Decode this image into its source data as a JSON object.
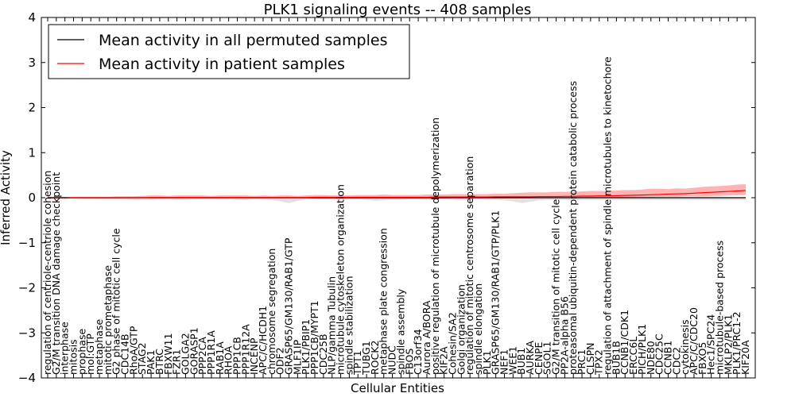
{
  "chart_data": {
    "type": "line",
    "title": "PLK1 signaling events -- 408 samples",
    "xlabel": "Cellular Entities",
    "ylabel": "Inferred Activity",
    "ylim": [
      -4,
      4
    ],
    "yticks": [
      -4,
      -3,
      -2,
      -1,
      0,
      1,
      2,
      3,
      4
    ],
    "legend_position": "top-left",
    "colors": {
      "permuted": "#000000",
      "patient": "#ff0000",
      "band": "#ff8a8a",
      "grey_band": "#c8c8c8"
    },
    "categories": [
      "regulation of centriole-centriole cohesion",
      "G2/M transition DNA damage checkpoint",
      "interphase",
      "mitosis",
      "prophase",
      "mol:GTP",
      "metaphase",
      "mitotic prometaphase",
      "G2 phase of mitotic cell cycle",
      "CDC14B",
      "RhoA/GTP",
      "STAG2",
      "PAK1",
      "BTRC",
      "FBXW11",
      "FZR1",
      "GOLGA2",
      "GORASP1",
      "PPP2CA",
      "PPP1R1A",
      "RAB1A",
      "RHOA",
      "PPP1CB",
      "PPP1R12A",
      "INCENP",
      "APC/C/HCDH1",
      "chromosome segregation",
      "ODF2",
      "GRASP65/GM130/RAB1/GTP",
      "MLF1IP",
      "PLK1/PBIP1",
      "PPP1CB/MYPT1",
      "CDC25B",
      "NLP/gamma Tubulin",
      "microtubule cytoskeleton organization",
      "spindle stabilization",
      "TPT1",
      "TUBG1",
      "ROCK2",
      "metaphase plate congression",
      "NUDC",
      "spindle assembly",
      "FBOS",
      "C13orf34",
      "Aurora A/BORA",
      "positive regulation of microtubule depolymerization",
      "KIF2A",
      "Cohesin/SA2",
      "Golgi organization",
      "regulation of mitotic centrosome separation",
      "spindle elongation",
      "PLK1",
      "GRASP65/GM130/RAB1/GTP/PLK1",
      "NEF1",
      "WEE1",
      "BUB1",
      "AURKA",
      "CENPE",
      "SGOL1",
      "G2/M transition of mitotic cell cycle",
      "PP2A-alpha B56",
      "proteasomal ubiquitin-dependent protein catabolic process",
      "PRC1",
      "CLSPN",
      "TPX2",
      "regulation of attachment of spindle microtubules to kinetochore",
      "BUB1B",
      "CCNB1/CDK1",
      "ERCC6L",
      "PICH/PLK1",
      "NDE80",
      "CDC25C",
      "CCNB1",
      "CDC2",
      "cytokinesis",
      "APC/C/CDC20",
      "FBXO5",
      "Hec1/SPC24",
      "microtubule-based process",
      "MKLP2/PLK1",
      "PLK1/PRC1-2",
      "KIF20A"
    ],
    "series": [
      {
        "name": "Mean activity in all permuted samples",
        "color": "#000000",
        "values": [
          0,
          0,
          0,
          0,
          0,
          0,
          0,
          0,
          0,
          0,
          0,
          0,
          0,
          0,
          0,
          0,
          0,
          0,
          0,
          0,
          0,
          0,
          0,
          0,
          0,
          0,
          0,
          0,
          0,
          0,
          0,
          0,
          0,
          0,
          0,
          0,
          0,
          0,
          0,
          0,
          0,
          0,
          0,
          0,
          0,
          0,
          0,
          0,
          0,
          0,
          0,
          0,
          0,
          0,
          0,
          0,
          0,
          0,
          0,
          0,
          0,
          0,
          0,
          0,
          0,
          0,
          0,
          0,
          0,
          0,
          0,
          0,
          0,
          0,
          0,
          0,
          0,
          0,
          0,
          0,
          0,
          0
        ]
      },
      {
        "name": "Mean activity in patient samples",
        "color": "#ff0000",
        "values": [
          -0.01,
          -0.01,
          -0.01,
          0,
          0,
          0,
          0,
          0,
          0,
          0,
          0,
          0,
          0.005,
          0.005,
          0.005,
          0.005,
          0.005,
          0.005,
          0.005,
          0.005,
          0.005,
          0.005,
          0.005,
          0.005,
          0.005,
          0.005,
          0.005,
          0.005,
          0.005,
          0.005,
          0.005,
          0.01,
          0.01,
          0.01,
          0.01,
          0.01,
          0.01,
          0.01,
          0.01,
          0.01,
          0.01,
          0.01,
          0.01,
          0.01,
          0.01,
          0.015,
          0.015,
          0.015,
          0.015,
          0.015,
          0.015,
          0.015,
          0.02,
          0.02,
          0.02,
          0.02,
          0.02,
          0.025,
          0.025,
          0.025,
          0.03,
          0.03,
          0.035,
          0.035,
          0.04,
          0.04,
          0.045,
          0.05,
          0.055,
          0.06,
          0.065,
          0.07,
          0.08,
          0.085,
          0.09,
          0.1,
          0.11,
          0.12,
          0.13,
          0.14,
          0.15,
          0.16
        ]
      }
    ],
    "band_upper": [
      0.02,
      0.02,
      0.02,
      0.02,
      0.02,
      0.02,
      0.02,
      0.02,
      0.03,
      0.03,
      0.03,
      0.04,
      0.05,
      0.05,
      0.04,
      0.05,
      0.05,
      0.05,
      0.05,
      0.04,
      0.05,
      0.05,
      0.05,
      0.05,
      0.04,
      0.05,
      0.04,
      0.05,
      0.05,
      0.04,
      0.05,
      0.06,
      0.06,
      0.05,
      0.05,
      0.05,
      0.06,
      0.06,
      0.06,
      0.07,
      0.06,
      0.06,
      0.06,
      0.06,
      0.07,
      0.07,
      0.07,
      0.08,
      0.08,
      0.08,
      0.08,
      0.08,
      0.09,
      0.09,
      0.1,
      0.11,
      0.12,
      0.12,
      0.12,
      0.13,
      0.13,
      0.13,
      0.14,
      0.15,
      0.15,
      0.15,
      0.16,
      0.17,
      0.17,
      0.18,
      0.2,
      0.2,
      0.19,
      0.21,
      0.2,
      0.22,
      0.24,
      0.25,
      0.26,
      0.27,
      0.29,
      0.3
    ],
    "band_lower": [
      -0.02,
      -0.02,
      -0.02,
      -0.02,
      -0.02,
      -0.02,
      -0.02,
      -0.02,
      -0.02,
      -0.02,
      -0.02,
      -0.02,
      -0.02,
      -0.02,
      -0.02,
      -0.02,
      -0.02,
      -0.02,
      -0.02,
      -0.02,
      -0.02,
      -0.02,
      -0.02,
      -0.02,
      -0.02,
      -0.02,
      -0.02,
      -0.02,
      -0.02,
      -0.02,
      -0.02,
      -0.02,
      -0.02,
      -0.02,
      -0.02,
      -0.02,
      -0.02,
      -0.02,
      -0.02,
      -0.02,
      -0.02,
      -0.02,
      -0.02,
      -0.02,
      -0.02,
      -0.02,
      -0.02,
      -0.01,
      -0.01,
      -0.01,
      -0.01,
      -0.01,
      -0.01,
      -0.01,
      -0.01,
      -0.01,
      -0.01,
      -0.01,
      -0.01,
      -0.01,
      -0.01,
      -0.01,
      -0.01,
      0,
      0,
      0,
      0,
      0,
      0.01,
      0.01,
      0.01,
      0.02,
      0.02,
      0.02,
      0.03,
      0.03,
      0.03,
      0.04,
      0.04,
      0.05,
      0.05,
      0.06
    ],
    "grey_band_upper": [
      0.01,
      0.01,
      0.01,
      0.01,
      0.01,
      0.01,
      0.01,
      0.01,
      0.01,
      0.01,
      0.01,
      0.01,
      0.01,
      0.01,
      0.01,
      0.01,
      0.01,
      0.01,
      0.01,
      0.01,
      0.01,
      0.01,
      0.01,
      0.01,
      0.01,
      0.01,
      0.01,
      0.01,
      0.01,
      0.01,
      0.01,
      0.01,
      0.01,
      0.01,
      0.01,
      0.01,
      0.01,
      0.01,
      0.01,
      0.01,
      0.01,
      0.01,
      0.01,
      0.01,
      0.01,
      0.01,
      0.01,
      0.01,
      0.01,
      0.01,
      0.01,
      0.01,
      0.01,
      0.01,
      0.01,
      0.01,
      0.01,
      0.01,
      0.01,
      0.01,
      0.01,
      0.01,
      0.01,
      0.01,
      0.01,
      0.01,
      0.01,
      0.01,
      0.01,
      0.01,
      0.01,
      0.01,
      0.01,
      0.01,
      0.01,
      0.01,
      0.01,
      0.01,
      0.01,
      0.01,
      0.01,
      0.01
    ],
    "grey_band_lower": [
      -0.02,
      -0.02,
      -0.02,
      -0.02,
      -0.03,
      -0.03,
      -0.04,
      -0.04,
      -0.04,
      -0.04,
      -0.05,
      -0.05,
      -0.05,
      -0.04,
      -0.04,
      -0.05,
      -0.05,
      -0.04,
      -0.04,
      -0.04,
      -0.04,
      -0.04,
      -0.05,
      -0.05,
      -0.04,
      -0.04,
      -0.05,
      -0.08,
      -0.12,
      -0.07,
      -0.04,
      -0.04,
      -0.04,
      -0.04,
      -0.05,
      -0.04,
      -0.04,
      -0.05,
      -0.07,
      -0.06,
      -0.05,
      -0.05,
      -0.04,
      -0.04,
      -0.05,
      -0.04,
      -0.04,
      -0.05,
      -0.06,
      -0.05,
      -0.04,
      -0.05,
      -0.05,
      -0.06,
      -0.08,
      -0.12,
      -0.09,
      -0.06,
      -0.05,
      -0.05,
      -0.05,
      -0.06,
      -0.05,
      -0.05,
      -0.05,
      -0.05,
      -0.05,
      -0.05,
      -0.05,
      -0.05,
      -0.05,
      -0.05,
      -0.05,
      -0.05,
      -0.05,
      -0.05,
      -0.05,
      -0.05,
      -0.05,
      -0.05,
      -0.05,
      -0.05
    ]
  }
}
